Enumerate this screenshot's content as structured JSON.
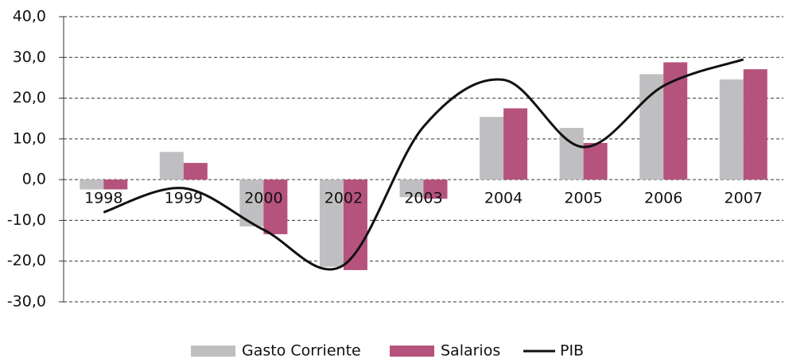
{
  "chart_data": {
    "type": "bar",
    "categories": [
      "1998",
      "1999",
      "2000",
      "2002",
      "2003",
      "2004",
      "2005",
      "2006",
      "2007"
    ],
    "series": [
      {
        "name": "Gasto Corriente",
        "color": "#bfbfc1",
        "values": [
          -2.4,
          6.8,
          -11.5,
          -21.4,
          -4.3,
          15.4,
          12.7,
          25.9,
          24.6
        ]
      },
      {
        "name": "Salarios",
        "color": "#b5537d",
        "values": [
          -2.4,
          4.1,
          -13.4,
          -22.2,
          -4.7,
          17.5,
          9.0,
          28.8,
          27.1
        ]
      },
      {
        "name": "PIB",
        "type": "line",
        "color": "#111111",
        "values": [
          -8.0,
          -2.1,
          -12.3,
          -21.0,
          13.0,
          24.5,
          8.0,
          23.0,
          29.5
        ]
      }
    ],
    "ylim": [
      -30,
      40
    ],
    "yticks": [
      {
        "value": -30,
        "label": "-30,0"
      },
      {
        "value": -20,
        "label": "-20,0"
      },
      {
        "value": -10,
        "label": "-10,0"
      },
      {
        "value": 0,
        "label": "0,0"
      },
      {
        "value": 10,
        "label": "10,0"
      },
      {
        "value": 20,
        "label": "20,0"
      },
      {
        "value": 30,
        "label": "30,0"
      },
      {
        "value": 40,
        "label": "40,0"
      }
    ],
    "grid": true,
    "legend": "bottom"
  }
}
